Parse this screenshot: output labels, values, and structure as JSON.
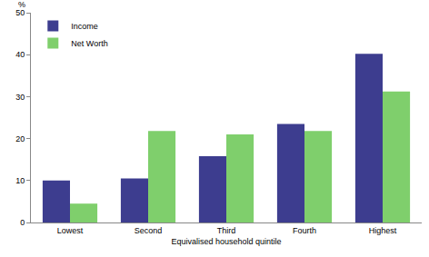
{
  "chart_data": {
    "type": "bar",
    "ylabel": "%",
    "xlabel": "Equivalised household quintile",
    "categories": [
      "Lowest",
      "Second",
      "Third",
      "Fourth",
      "Highest"
    ],
    "series": [
      {
        "name": "Income",
        "color": "#3d3d8f",
        "values": [
          10,
          10.5,
          15.8,
          23.5,
          40.2
        ]
      },
      {
        "name": "Net Worth",
        "color": "#7fcf6c",
        "values": [
          4.5,
          21.8,
          21,
          21.8,
          31.2
        ]
      }
    ],
    "ylim": [
      0,
      50
    ],
    "yticks": [
      0,
      10,
      20,
      30,
      40,
      50
    ],
    "grid": true,
    "legend": "upper left"
  }
}
